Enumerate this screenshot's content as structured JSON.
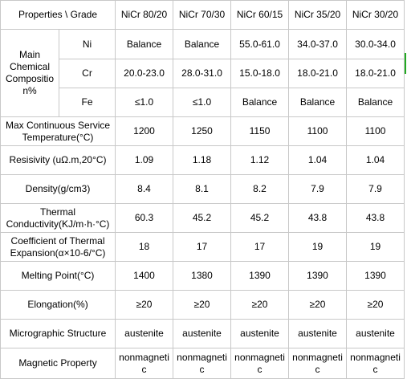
{
  "table": {
    "header": {
      "corner": "Properties \\ Grade",
      "grades": [
        "NiCr 80/20",
        "NiCr 70/30",
        "NiCr 60/15",
        "NiCr 35/20",
        "NiCr 30/20"
      ]
    },
    "composition": {
      "label": "Main Chemical Composition%",
      "rows": [
        {
          "element": "Ni",
          "values": [
            "Balance",
            "Balance",
            "55.0-61.0",
            "34.0-37.0",
            "30.0-34.0"
          ]
        },
        {
          "element": "Cr",
          "values": [
            "20.0-23.0",
            "28.0-31.0",
            "15.0-18.0",
            "18.0-21.0",
            "18.0-21.0"
          ]
        },
        {
          "element": "Fe",
          "values": [
            "≤1.0",
            "≤1.0",
            "Balance",
            "Balance",
            "Balance"
          ]
        }
      ]
    },
    "properties": [
      {
        "label": "Max Continuous Service Temperature(°C)",
        "values": [
          "1200",
          "1250",
          "1150",
          "1100",
          "1100"
        ]
      },
      {
        "label": "Resisivity (uΩ.m,20°C)",
        "values": [
          "1.09",
          "1.18",
          "1.12",
          "1.04",
          "1.04"
        ]
      },
      {
        "label": "Density(g/cm3)",
        "values": [
          "8.4",
          "8.1",
          "8.2",
          "7.9",
          "7.9"
        ]
      },
      {
        "label": "Thermal Conductivity(KJ/m·h·°C)",
        "values": [
          "60.3",
          "45.2",
          "45.2",
          "43.8",
          "43.8"
        ]
      },
      {
        "label": "Coefficient of Thermal Expansion(α×10-6/°C)",
        "values": [
          "18",
          "17",
          "17",
          "19",
          "19"
        ]
      },
      {
        "label": "Melting Point(°C)",
        "values": [
          "1400",
          "1380",
          "1390",
          "1390",
          "1390"
        ]
      },
      {
        "label": "Elongation(%)",
        "values": [
          "≥20",
          "≥20",
          "≥20",
          "≥20",
          "≥20"
        ]
      },
      {
        "label": "Micrographic Structure",
        "values": [
          "austenite",
          "austenite",
          "austenite",
          "austenite",
          "austenite"
        ]
      },
      {
        "label": "Magnetic Property",
        "values": [
          "nonmagnetic",
          "nonmagnetic",
          "nonmagnetic",
          "nonmagnetic",
          "nonmagnetic"
        ]
      }
    ]
  },
  "colors": {
    "border": "#c8c8c8",
    "text": "#000000",
    "edge_marker": "#22aa22"
  }
}
